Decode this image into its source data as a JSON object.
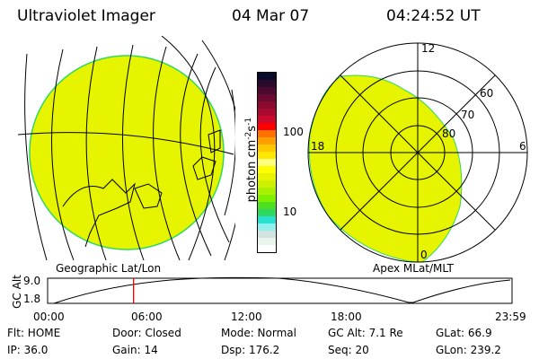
{
  "header": {
    "instrument": "Ultraviolet Imager",
    "date": "04 Mar 07",
    "time": "04:24:52 UT"
  },
  "colorbar": {
    "label": "photon cm",
    "label_exp1": "-2",
    "label_mid": "s",
    "label_exp2": "-1",
    "ticks": [
      "100",
      "10"
    ],
    "colors": [
      "#0a0a2a",
      "#2a0a2a",
      "#4a0a30",
      "#6a0a30",
      "#8a0a30",
      "#aa0a30",
      "#cc0a30",
      "#ff0000",
      "#ff7000",
      "#ffa000",
      "#ffc800",
      "#ffe600",
      "#ffff80",
      "#ffff00",
      "#e8f400",
      "#ccf000",
      "#a8f000",
      "#7ef000",
      "#4ee020",
      "#2ed860",
      "#26e0d0",
      "#90f0f0",
      "#d2e4e0",
      "#e8f4ec",
      "#ffffff"
    ]
  },
  "geo_map": {
    "label": "Geographic Lat/Lon",
    "fill_color": "#e6f400"
  },
  "polar": {
    "label": "Apex MLat/MLT",
    "mlt_labels": [
      "12",
      "18",
      "6",
      "0"
    ],
    "lat_labels": [
      "60",
      "70",
      "80"
    ]
  },
  "timeline": {
    "ylabel": "GC Alt",
    "yticks": [
      "9.0",
      "1.8"
    ],
    "xticks": [
      "00:00",
      "06:00",
      "12:00",
      "18:00",
      "23:59"
    ],
    "current_time_fraction": 0.185
  },
  "status": {
    "flt": "Flt: HOME",
    "door": "Door: Closed",
    "mode": "Mode: Normal",
    "gcalt": "GC Alt: 7.1 Re",
    "glat": "GLat:  66.9",
    "ip": "IP: 36.0",
    "gain": "Gain: 14",
    "dsp": "Dsp:   176.2",
    "seq": "Seq: 20",
    "glon": "GLon: 239.2"
  }
}
